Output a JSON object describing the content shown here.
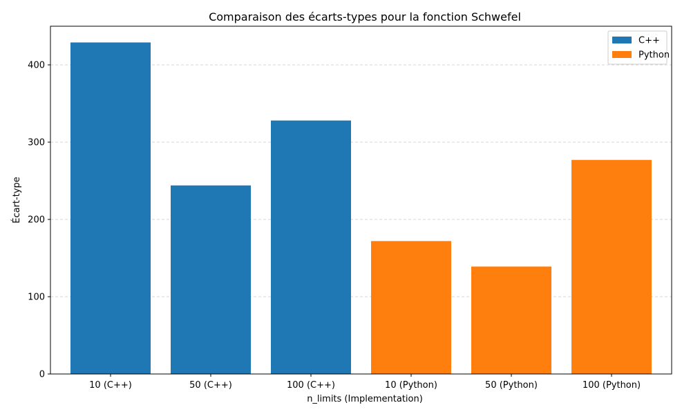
{
  "chart_data": {
    "type": "bar",
    "title": "Comparaison des écarts-types pour la fonction Schwefel",
    "xlabel": "n_limits (Implementation)",
    "ylabel": "Écart-type",
    "categories": [
      "10 (C++)",
      "50 (C++)",
      "100 (C++)",
      "10 (Python)",
      "50 (Python)",
      "100 (Python)"
    ],
    "values": [
      429,
      244,
      328,
      172,
      139,
      277
    ],
    "series_index": [
      0,
      0,
      0,
      1,
      1,
      1
    ],
    "series": [
      {
        "name": "C++",
        "color": "#1f77b4"
      },
      {
        "name": "Python",
        "color": "#ff7f0e"
      }
    ],
    "ylim": [
      0,
      450
    ],
    "yticks": [
      0,
      100,
      200,
      300,
      400
    ],
    "grid": "y-dashed",
    "legend_position": "top-right"
  }
}
